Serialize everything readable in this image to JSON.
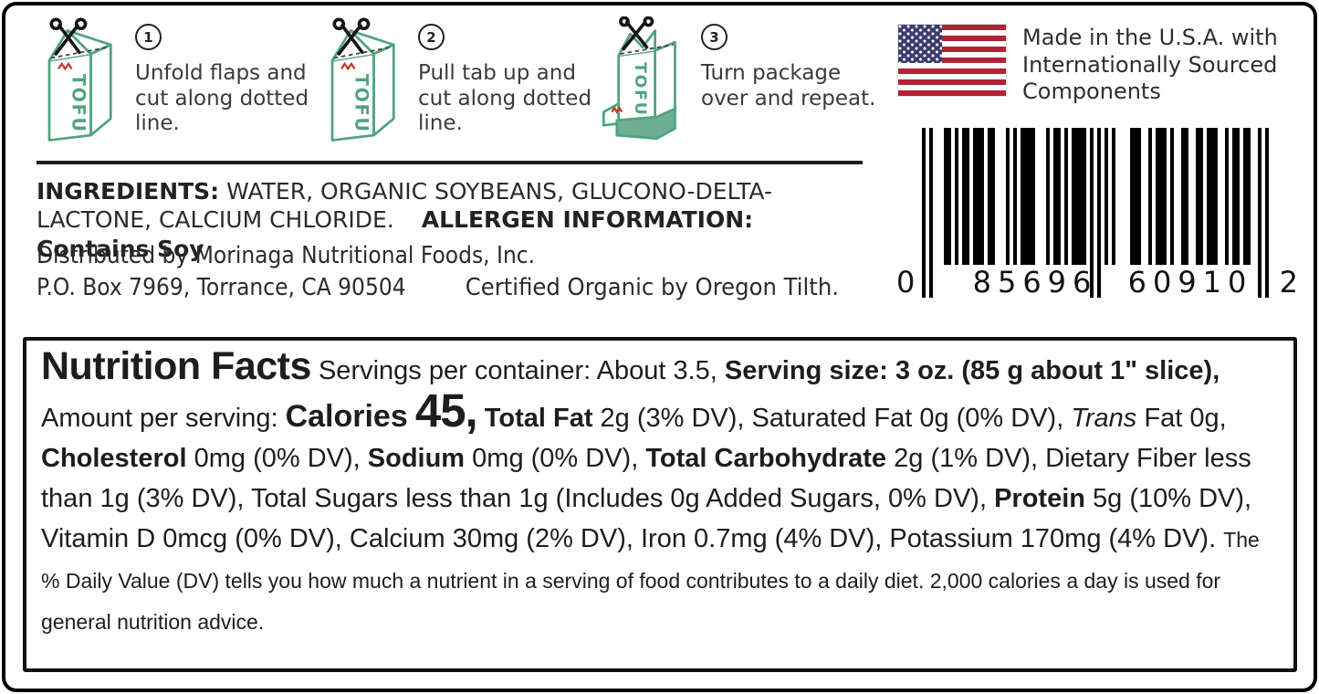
{
  "steps": [
    {
      "number": "1",
      "text": "Unfold flaps and cut along dotted line.",
      "icon": "tofu-carton-scissors"
    },
    {
      "number": "2",
      "text": "Pull tab up and cut along dotted line.",
      "icon": "tofu-carton-scissors"
    },
    {
      "number": "3",
      "text": "Turn package over and repeat.",
      "icon": "tofu-carton-opened"
    }
  ],
  "origin_note": "Made in the U.S.A. with Internationally Sourced Components",
  "barcode": {
    "left_digit": "0",
    "group1": "85696",
    "group2": "60910",
    "right_digit": "2",
    "pattern": "10100011010110111011000101011110001011010111101010101000011100101110100110011011100101101100101"
  },
  "ingredients": {
    "label": "INGREDIENTS:",
    "list": "WATER, ORGANIC SOYBEANS, GLUCONO-DELTA-LACTONE, CALCIUM CHLORIDE.",
    "allergen_label": "ALLERGEN INFORMATION: Contains Soy"
  },
  "distributor": {
    "line1": "Distributed by Morinaga Nutritional Foods, Inc.",
    "address": "P.O. Box 7969, Torrance, CA 90504",
    "certified": "Certified Organic by Oregon Tilth."
  },
  "nutrition": {
    "title": "Nutrition Facts",
    "servings": "Servings per container: About 3.5,",
    "serving_size": "Serving size: 3 oz. (85 g about 1\" slice),",
    "amount_label": "Amount per serving:",
    "calories_label": "Calories",
    "calories_value": "45,",
    "total_fat_label": "Total Fat",
    "total_fat_rest": "2g (3% DV), Saturated Fat 0g (0% DV),",
    "trans_word": "Trans",
    "trans_rest": "Fat 0g,",
    "cholesterol_label": "Cholesterol",
    "cholesterol_rest": "0mg (0% DV),",
    "sodium_label": "Sodium",
    "sodium_rest": "0mg (0% DV),",
    "carb_label": "Total Carbohydrate",
    "carb_rest": "2g (1% DV), Dietary Fiber less than 1g (3% DV), Total Sugars less than 1g (Includes 0g Added Sugars, 0% DV),",
    "protein_label": "Protein",
    "protein_rest": "5g (10% DV), Vitamin D 0mcg (0% DV), Calcium 30mg (2% DV), Iron 0.7mg (4% DV), Potassium 170mg (4% DV).",
    "dv_note": "The % Daily Value (DV) tells you how much a nutrient in a serving of food contributes to a daily diet. 2,000 calories a day is used for general nutrition advice."
  },
  "colors": {
    "carton_green": "#4FA380",
    "logo_red": "#C03A2B",
    "flag_red": "#B22234",
    "flag_blue": "#3C3B6E",
    "text_dark": "#231F20"
  }
}
